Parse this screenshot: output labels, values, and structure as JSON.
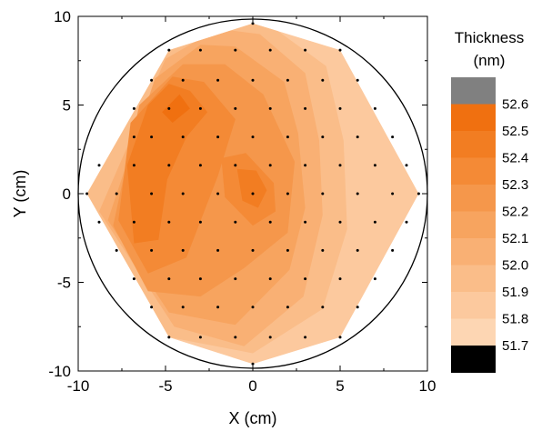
{
  "chart_data": {
    "type": "heatmap",
    "title": "",
    "xlabel": "X (cm)",
    "ylabel": "Y (cm)",
    "xlim": [
      -10,
      10
    ],
    "ylim": [
      -10,
      10
    ],
    "x_ticks": [
      "-10",
      "-5",
      "0",
      "5",
      "10"
    ],
    "y_ticks": [
      "10",
      "5",
      "0",
      "-5",
      "-10"
    ],
    "wafer_diameter_cm": 20,
    "grid": false,
    "colorbar": {
      "title_lines": [
        "Thickness",
        "(nm)"
      ],
      "labels": [
        "52.6",
        "52.5",
        "52.4",
        "52.3",
        "52.2",
        "52.1",
        "52.0",
        "51.9",
        "51.8",
        "51.7"
      ],
      "colors": [
        "#808080",
        "#f07010",
        "#f27d22",
        "#f48a36",
        "#f5974b",
        "#f7a45f",
        "#f9b074",
        "#fabd89",
        "#fcc99e",
        "#fdd6b3",
        "#000000"
      ],
      "colors_note": "top to bottom: above-range, ten levels, below-range"
    },
    "hexagon_vertices": [
      [
        -9.5,
        0
      ],
      [
        -4.8,
        8.1
      ],
      [
        0,
        9.6
      ],
      [
        5.0,
        8.1
      ],
      [
        9.5,
        0
      ],
      [
        5.0,
        -8.1
      ],
      [
        0,
        -9.6
      ],
      [
        -4.8,
        -8.1
      ]
    ],
    "contours": [
      {
        "level": 51.85,
        "points": [
          [
            0,
            9.6
          ],
          [
            5.0,
            8.1
          ],
          [
            9.5,
            0
          ],
          [
            5.0,
            -8.1
          ],
          [
            0,
            -9.6
          ],
          [
            -4.8,
            -8.1
          ],
          [
            -9.5,
            0
          ],
          [
            -4.8,
            8.1
          ]
        ]
      },
      {
        "level": 51.95,
        "points": [
          [
            1.4,
            9.2
          ],
          [
            4.2,
            7.2
          ],
          [
            5.2,
            3.0
          ],
          [
            5.4,
            -2.0
          ],
          [
            4.0,
            -6.5
          ],
          [
            0.0,
            -9.0
          ],
          [
            -4.8,
            -8.1
          ],
          [
            -9.5,
            0
          ],
          [
            -4.8,
            8.1
          ],
          [
            0,
            9.6
          ]
        ]
      },
      {
        "level": 52.05,
        "points": [
          [
            0.4,
            9.0
          ],
          [
            3.0,
            6.8
          ],
          [
            3.8,
            3.0
          ],
          [
            4.0,
            -1.2
          ],
          [
            2.9,
            -5.8
          ],
          [
            -0.5,
            -8.6
          ],
          [
            -4.5,
            -7.5
          ],
          [
            -8.8,
            -1.0
          ],
          [
            -5.0,
            7.6
          ],
          [
            -2.0,
            9.3
          ]
        ]
      },
      {
        "level": 52.15,
        "points": [
          [
            -1.0,
            8.3
          ],
          [
            1.8,
            6.3
          ],
          [
            2.6,
            3.4
          ],
          [
            3.0,
            -0.8
          ],
          [
            2.1,
            -4.3
          ],
          [
            -1.0,
            -7.4
          ],
          [
            -4.8,
            -6.7
          ],
          [
            -8.3,
            -1.5
          ],
          [
            -5.6,
            6.5
          ],
          [
            -3.0,
            8.4
          ]
        ]
      },
      {
        "level": 52.25,
        "points": [
          [
            -1.6,
            7.3
          ],
          [
            0.6,
            5.6
          ],
          [
            2.4,
            1.8
          ],
          [
            2.0,
            -2.2
          ],
          [
            -0.5,
            -4.2
          ],
          [
            -3.0,
            -5.8
          ],
          [
            -6.0,
            -5.5
          ],
          [
            -8.0,
            -1.8
          ],
          [
            -6.5,
            5.0
          ],
          [
            -4.0,
            7.3
          ]
        ]
      },
      {
        "level": 52.35,
        "points": [
          [
            -2.8,
            6.3
          ],
          [
            -1.0,
            4.2
          ],
          [
            -2.0,
            1.0
          ],
          [
            -3.8,
            -3.6
          ],
          [
            -6.0,
            -4.5
          ],
          [
            -7.7,
            -1.5
          ],
          [
            -7.0,
            4.0
          ],
          [
            -4.6,
            6.6
          ]
        ]
      },
      {
        "level": 52.35,
        "points": [
          [
            -1.8,
            2.0
          ],
          [
            -0.4,
            2.3
          ],
          [
            1.2,
            0.6
          ],
          [
            1.3,
            -1.0
          ],
          [
            0.0,
            -1.8
          ],
          [
            -1.6,
            -0.2
          ]
        ]
      },
      {
        "level": 52.45,
        "points": [
          [
            -3.6,
            5.8
          ],
          [
            -2.6,
            4.6
          ],
          [
            -3.8,
            3.2
          ],
          [
            -4.9,
            0.8
          ],
          [
            -5.4,
            -2.6
          ],
          [
            -6.8,
            -2.8
          ],
          [
            -7.2,
            1.6
          ],
          [
            -6.0,
            5.0
          ],
          [
            -4.8,
            6.2
          ]
        ]
      },
      {
        "level": 52.45,
        "points": [
          [
            -0.9,
            1.4
          ],
          [
            0.2,
            1.3
          ],
          [
            0.8,
            0.2
          ],
          [
            0.3,
            -0.8
          ],
          [
            -0.6,
            -0.4
          ]
        ]
      },
      {
        "level": 52.55,
        "points": [
          [
            -4.2,
            5.6
          ],
          [
            -3.6,
            4.8
          ],
          [
            -4.6,
            4.0
          ],
          [
            -5.2,
            4.6
          ]
        ]
      }
    ],
    "points": [
      [
        -4.8,
        8.1
      ],
      [
        -3.0,
        8.1
      ],
      [
        -1.0,
        8.1
      ],
      [
        1.0,
        8.1
      ],
      [
        3.0,
        8.1
      ],
      [
        5.0,
        8.1
      ],
      [
        -5.8,
        6.4
      ],
      [
        -4.0,
        6.4
      ],
      [
        -2.0,
        6.4
      ],
      [
        0.0,
        6.4
      ],
      [
        2.0,
        6.4
      ],
      [
        4.0,
        6.4
      ],
      [
        6.0,
        6.4
      ],
      [
        -6.8,
        4.8
      ],
      [
        -4.8,
        4.8
      ],
      [
        -3.0,
        4.8
      ],
      [
        -1.0,
        4.8
      ],
      [
        1.0,
        4.8
      ],
      [
        3.0,
        4.8
      ],
      [
        5.0,
        4.8
      ],
      [
        7.0,
        4.8
      ],
      [
        -6.8,
        3.2
      ],
      [
        -5.8,
        3.2
      ],
      [
        -4.0,
        3.2
      ],
      [
        -2.0,
        3.2
      ],
      [
        0.0,
        3.2
      ],
      [
        2.0,
        3.2
      ],
      [
        4.0,
        3.2
      ],
      [
        6.0,
        3.2
      ],
      [
        8.0,
        3.2
      ],
      [
        -8.8,
        1.6
      ],
      [
        -6.8,
        1.6
      ],
      [
        -4.8,
        1.6
      ],
      [
        -3.0,
        1.6
      ],
      [
        -1.0,
        1.6
      ],
      [
        1.0,
        1.6
      ],
      [
        3.0,
        1.6
      ],
      [
        5.0,
        1.6
      ],
      [
        7.0,
        1.6
      ],
      [
        8.8,
        1.6
      ],
      [
        -9.5,
        0.0
      ],
      [
        -7.8,
        0.0
      ],
      [
        -5.8,
        0.0
      ],
      [
        -4.0,
        0.0
      ],
      [
        -2.0,
        0.0
      ],
      [
        0.0,
        0.0
      ],
      [
        2.0,
        0.0
      ],
      [
        4.0,
        0.0
      ],
      [
        6.0,
        0.0
      ],
      [
        8.0,
        0.0
      ],
      [
        9.5,
        0.0
      ],
      [
        -8.8,
        -1.6
      ],
      [
        -6.8,
        -1.6
      ],
      [
        -4.8,
        -1.6
      ],
      [
        -3.0,
        -1.6
      ],
      [
        -1.0,
        -1.6
      ],
      [
        1.0,
        -1.6
      ],
      [
        3.0,
        -1.6
      ],
      [
        5.0,
        -1.6
      ],
      [
        7.0,
        -1.6
      ],
      [
        8.8,
        -1.6
      ],
      [
        -7.8,
        -3.2
      ],
      [
        -5.8,
        -3.2
      ],
      [
        -4.0,
        -3.2
      ],
      [
        -2.0,
        -3.2
      ],
      [
        0.0,
        -3.2
      ],
      [
        2.0,
        -3.2
      ],
      [
        4.0,
        -3.2
      ],
      [
        6.0,
        -3.2
      ],
      [
        8.0,
        -3.2
      ],
      [
        -6.8,
        -4.8
      ],
      [
        -4.8,
        -4.8
      ],
      [
        -3.0,
        -4.8
      ],
      [
        -1.0,
        -4.8
      ],
      [
        1.0,
        -4.8
      ],
      [
        3.0,
        -4.8
      ],
      [
        5.0,
        -4.8
      ],
      [
        7.0,
        -4.8
      ],
      [
        -5.8,
        -6.4
      ],
      [
        -4.0,
        -6.4
      ],
      [
        -2.0,
        -6.4
      ],
      [
        0.0,
        -6.4
      ],
      [
        2.0,
        -6.4
      ],
      [
        4.0,
        -6.4
      ],
      [
        6.0,
        -6.4
      ],
      [
        -4.8,
        -8.1
      ],
      [
        -3.0,
        -8.1
      ],
      [
        -1.0,
        -8.1
      ],
      [
        1.0,
        -8.1
      ],
      [
        3.0,
        -8.1
      ],
      [
        5.0,
        -8.1
      ],
      [
        0.0,
        -9.6
      ],
      [
        0.0,
        9.6
      ]
    ]
  }
}
